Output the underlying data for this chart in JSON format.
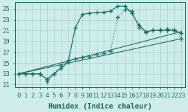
{
  "xlabel": "Humidex (Indice chaleur)",
  "bg_color": "#ceecea",
  "grid_color": "#a8d8d0",
  "line_color": "#1a6b60",
  "xlim": [
    -0.5,
    23.5
  ],
  "ylim": [
    10.5,
    26.2
  ],
  "xticks": [
    0,
    1,
    2,
    3,
    4,
    5,
    6,
    7,
    8,
    9,
    10,
    11,
    12,
    13,
    14,
    15,
    16,
    17,
    18,
    19,
    20,
    21,
    22,
    23
  ],
  "yticks": [
    11,
    13,
    15,
    17,
    19,
    21,
    23,
    25
  ],
  "curve_solid_x": [
    0,
    1,
    2,
    3,
    4,
    5,
    6,
    7,
    8,
    9,
    10,
    11,
    12,
    13,
    14,
    15,
    16,
    17,
    18,
    19,
    20,
    21,
    22,
    23
  ],
  "curve_solid_y": [
    13,
    13,
    13,
    13,
    12,
    13,
    14,
    15.2,
    21.5,
    24.0,
    24.2,
    24.3,
    24.4,
    24.6,
    25.5,
    25.5,
    24.2,
    22.0,
    20.8,
    21.0,
    21.0,
    21.0,
    21.0,
    20.5
  ],
  "curve_dot_x": [
    0,
    1,
    2,
    3,
    4,
    4,
    5,
    6,
    7,
    8,
    9,
    10,
    11,
    12,
    13,
    14,
    15,
    16,
    17,
    18,
    19,
    20,
    21,
    22,
    23
  ],
  "curve_dot_y": [
    13,
    13,
    13,
    13,
    12,
    11.5,
    13,
    14.5,
    15.5,
    15.8,
    16.0,
    16.2,
    16.5,
    16.8,
    17.2,
    23.5,
    24.8,
    24.6,
    21.5,
    20.7,
    21.1,
    21.2,
    21.3,
    21.2,
    19.5
  ],
  "line1_x": [
    0,
    23
  ],
  "line1_y": [
    13.0,
    19.5
  ],
  "line2_x": [
    0,
    23
  ],
  "line2_y": [
    13.0,
    20.8
  ],
  "marker": "+",
  "marker_size": 4,
  "font_family": "monospace",
  "label_fontsize": 7.5,
  "tick_fontsize": 6.5
}
